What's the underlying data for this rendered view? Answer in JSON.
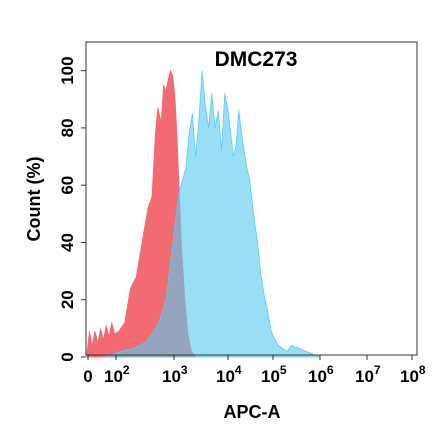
{
  "chart_data": {
    "type": "area",
    "title": "DMC273",
    "xlabel": "APC-A",
    "ylabel": "Count  (%)",
    "x_scale": "biexponential",
    "x_ticks": [
      {
        "base": "0",
        "exp": ""
      },
      {
        "base": "10",
        "exp": "2"
      },
      {
        "base": "10",
        "exp": "3"
      },
      {
        "base": "10",
        "exp": "4"
      },
      {
        "base": "10",
        "exp": "5"
      },
      {
        "base": "10",
        "exp": "6"
      },
      {
        "base": "10",
        "exp": "7"
      },
      {
        "base": "10",
        "exp": "8"
      }
    ],
    "y_ticks": [
      "0",
      "20",
      "40",
      "60",
      "80",
      "100"
    ],
    "ylim": [
      0,
      110
    ],
    "grid": false,
    "legend": "none",
    "series": [
      {
        "color": "#f26b72",
        "log_x": [
          0.95,
          1.05,
          1.15,
          1.25,
          1.35,
          1.45,
          1.55,
          1.65,
          1.75,
          1.85,
          1.95,
          2.05,
          2.15,
          2.25,
          2.35,
          2.45,
          2.55,
          2.62,
          2.68,
          2.72,
          2.78,
          2.82,
          2.86,
          2.9,
          2.94,
          2.98,
          3.02,
          3.06,
          3.1,
          3.14,
          3.2,
          3.26,
          3.32,
          3.4
        ],
        "y": [
          0,
          9,
          4,
          9,
          5,
          10,
          6,
          11,
          7,
          12,
          8,
          9,
          12,
          24,
          28,
          40,
          52,
          56,
          78,
          87,
          82,
          95,
          93,
          97,
          100,
          98,
          90,
          76,
          56,
          38,
          20,
          8,
          2,
          0
        ]
      },
      {
        "color": "#5cc9f0",
        "log_x": [
          1.6,
          1.85,
          2.1,
          2.3,
          2.5,
          2.62,
          2.74,
          2.86,
          2.96,
          3.04,
          3.1,
          3.16,
          3.22,
          3.28,
          3.34,
          3.4,
          3.46,
          3.52,
          3.58,
          3.64,
          3.7,
          3.76,
          3.82,
          3.88,
          3.94,
          4.0,
          4.06,
          4.12,
          4.18,
          4.24,
          4.3,
          4.36,
          4.42,
          4.48,
          4.54,
          4.6,
          4.66,
          4.72,
          4.8,
          4.88,
          4.96,
          5.04,
          5.12,
          5.2,
          5.3,
          5.4,
          5.55,
          5.7,
          5.85,
          6.0
        ],
        "y": [
          0,
          1,
          2,
          3,
          5,
          8,
          12,
          20,
          36,
          50,
          58,
          62,
          66,
          78,
          85,
          70,
          82,
          100,
          88,
          80,
          92,
          80,
          86,
          72,
          92,
          86,
          78,
          70,
          74,
          86,
          78,
          72,
          66,
          62,
          54,
          46,
          40,
          30,
          22,
          16,
          9,
          6,
          4,
          3,
          2,
          4,
          3,
          2,
          1,
          0
        ]
      }
    ]
  }
}
